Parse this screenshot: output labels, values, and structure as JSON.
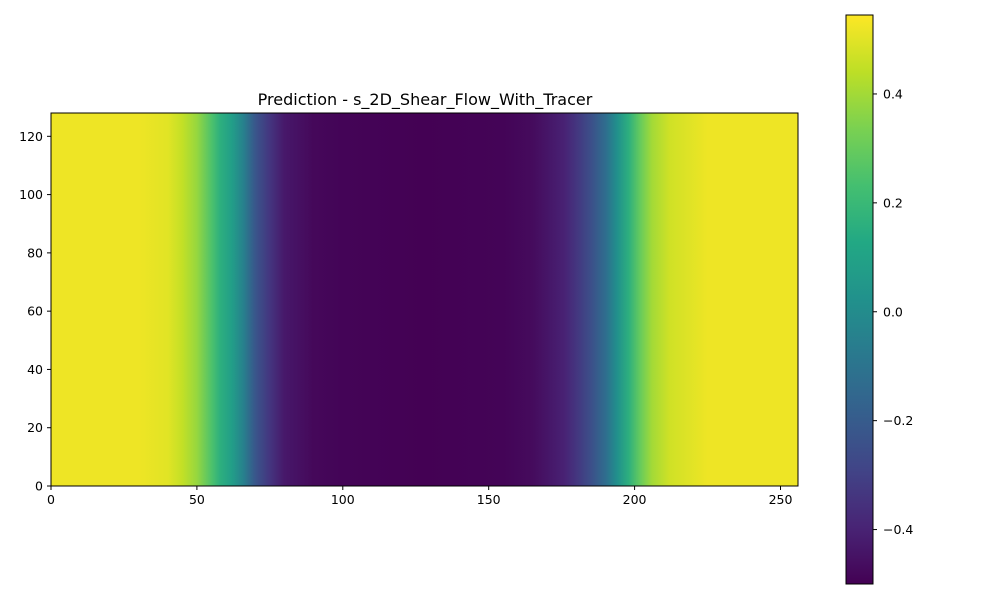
{
  "chart_data": {
    "type": "heatmap",
    "title": "Prediction - s_2D_Shear_Flow_With_Tracer",
    "xlabel": "",
    "ylabel": "",
    "xlim": [
      0,
      256
    ],
    "ylim": [
      0,
      128
    ],
    "x_ticks": [
      0,
      50,
      100,
      150,
      200,
      250
    ],
    "y_ticks": [
      0,
      20,
      40,
      60,
      80,
      100,
      120
    ],
    "colormap": "viridis",
    "colorbar": {
      "vmin": -0.5,
      "vmax": 0.545,
      "ticks": [
        -0.4,
        -0.2,
        0.0,
        0.2,
        0.4
      ],
      "tick_labels": [
        "−0.4",
        "−0.2",
        "0.0",
        "0.2",
        "0.4"
      ]
    },
    "profile_along_x": {
      "description_free": true,
      "x": [
        0,
        30,
        40,
        45,
        50,
        55,
        58,
        62,
        66,
        70,
        75,
        80,
        90,
        100,
        128,
        155,
        165,
        170,
        176,
        180,
        185,
        190,
        194,
        198,
        202,
        206,
        212,
        225,
        256
      ],
      "value": [
        0.52,
        0.52,
        0.5,
        0.45,
        0.38,
        0.25,
        0.16,
        0.08,
        -0.05,
        -0.22,
        -0.34,
        -0.43,
        -0.48,
        -0.49,
        -0.5,
        -0.49,
        -0.47,
        -0.44,
        -0.4,
        -0.34,
        -0.25,
        -0.13,
        0.02,
        0.16,
        0.3,
        0.4,
        0.47,
        0.52,
        0.52
      ]
    },
    "grid": false,
    "legend": "none"
  }
}
